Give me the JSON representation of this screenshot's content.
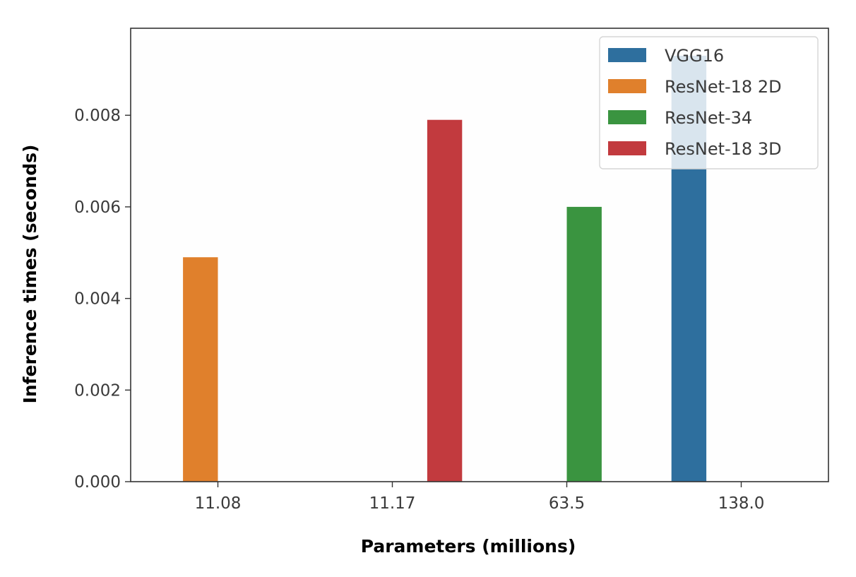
{
  "chart_data": {
    "type": "bar",
    "categories": [
      "11.08",
      "11.17",
      "63.5",
      "138.0"
    ],
    "xlabel": "Parameters (millions)",
    "ylabel": "Inference times (seconds)",
    "ylim": [
      0,
      0.0099
    ],
    "yticks": [
      "0.000",
      "0.002",
      "0.004",
      "0.006",
      "0.008"
    ],
    "grid": false,
    "legend_position": "top-right",
    "series": [
      {
        "name": "VGG16",
        "color": "#2e6f9e",
        "values": [
          0,
          0,
          0,
          0.0093
        ]
      },
      {
        "name": "ResNet-18 2D",
        "color": "#e0802c",
        "values": [
          0.0049,
          0,
          0,
          0
        ]
      },
      {
        "name": "ResNet-34",
        "color": "#3a9440",
        "values": [
          0,
          0,
          0.006,
          0
        ]
      },
      {
        "name": "ResNet-18 3D",
        "color": "#c23a3e",
        "values": [
          0,
          0.0079,
          0,
          0
        ]
      }
    ]
  }
}
